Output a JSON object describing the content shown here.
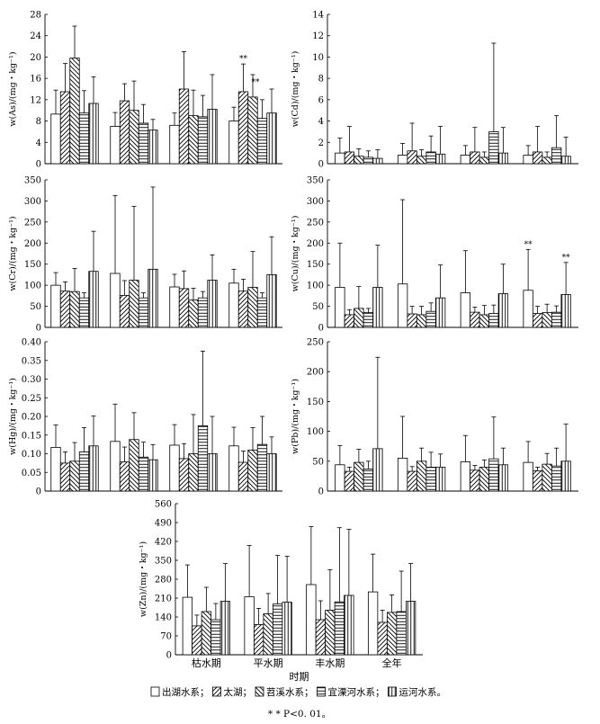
{
  "periods": [
    "枯水期",
    "平水期",
    "丰水期",
    "全年"
  ],
  "xlabel": "时期",
  "legend": {
    "items": [
      "出湖水系；",
      "太湖；",
      "苕溪水系；",
      "宜溧河水系；",
      "运河水系。"
    ]
  },
  "footnote": "* * P<0. 01。",
  "colors": {
    "bar_fill": "#ffffff",
    "stroke": "#000000"
  },
  "series_patterns": [
    "blank",
    "diagonal-right",
    "diagonal-left",
    "horizontal",
    "vertical"
  ],
  "chart_data": [
    {
      "type": "bar",
      "panel": "As",
      "ylabel": "w(As)/(mg・kg⁻¹)",
      "ylim": [
        0,
        28
      ],
      "yticks": [
        "0",
        "4",
        "8",
        "12",
        "16",
        "20",
        "24",
        "28"
      ],
      "categories": [
        "枯水期",
        "平水期",
        "丰水期",
        "全年"
      ],
      "series": [
        {
          "name": "出湖水系",
          "values": [
            9.3,
            7.0,
            7.2,
            8.0
          ],
          "error": [
            4.5,
            2.6,
            2.3,
            2.6
          ]
        },
        {
          "name": "太湖",
          "values": [
            13.5,
            11.8,
            14.0,
            13.5
          ],
          "error": [
            5.3,
            3.2,
            7.0,
            5.2
          ]
        },
        {
          "name": "苕溪水系",
          "values": [
            19.8,
            10.0,
            9.0,
            12.5
          ],
          "error": [
            6.0,
            5.5,
            4.8,
            4.2
          ]
        },
        {
          "name": "宜溧河水系",
          "values": [
            9.5,
            7.6,
            8.8,
            8.5
          ],
          "error": [
            4.2,
            3.5,
            4.0,
            3.5
          ]
        },
        {
          "name": "运河水系",
          "values": [
            11.3,
            6.3,
            10.2,
            9.5
          ],
          "error": [
            5.0,
            2.0,
            6.5,
            4.5
          ]
        }
      ],
      "annotations": [
        {
          "category": "全年",
          "series": "太湖",
          "text": "**"
        },
        {
          "category": "全年",
          "series": "苕溪水系",
          "text": "**"
        }
      ]
    },
    {
      "type": "bar",
      "panel": "Cd",
      "ylabel": "w(Cd)/(mg・kg⁻¹)",
      "ylim": [
        0,
        14
      ],
      "yticks": [
        "0",
        "2",
        "4",
        "6",
        "8",
        "10",
        "12",
        "14"
      ],
      "categories": [
        "枯水期",
        "平水期",
        "丰水期",
        "全年"
      ],
      "series": [
        {
          "name": "出湖水系",
          "values": [
            1.0,
            0.8,
            0.8,
            0.8
          ],
          "error": [
            1.4,
            1.1,
            0.9,
            0.9
          ]
        },
        {
          "name": "太湖",
          "values": [
            1.1,
            1.2,
            1.1,
            1.1
          ],
          "error": [
            2.4,
            2.6,
            2.3,
            2.4
          ]
        },
        {
          "name": "苕溪水系",
          "values": [
            0.7,
            0.7,
            0.6,
            0.6
          ],
          "error": [
            0.7,
            0.6,
            0.5,
            0.5
          ]
        },
        {
          "name": "宜溧河水系",
          "values": [
            0.6,
            1.1,
            3.0,
            1.5
          ],
          "error": [
            0.6,
            1.5,
            8.3,
            3.0
          ]
        },
        {
          "name": "运河水系",
          "values": [
            0.5,
            0.9,
            1.0,
            0.7
          ],
          "error": [
            0.8,
            2.6,
            2.4,
            1.8
          ]
        }
      ]
    },
    {
      "type": "bar",
      "panel": "Cr",
      "ylabel": "w(Cr)/(mg・kg⁻¹)",
      "ylim": [
        0,
        350
      ],
      "yticks": [
        "0",
        "50",
        "100",
        "150",
        "200",
        "250",
        "300",
        "350"
      ],
      "categories": [
        "枯水期",
        "平水期",
        "丰水期",
        "全年"
      ],
      "series": [
        {
          "name": "出湖水系",
          "values": [
            100,
            128,
            96,
            105
          ],
          "error": [
            30,
            185,
            30,
            33
          ]
        },
        {
          "name": "太湖",
          "values": [
            86,
            76,
            92,
            86
          ],
          "error": [
            22,
            35,
            42,
            28
          ]
        },
        {
          "name": "苕溪水系",
          "values": [
            85,
            112,
            65,
            95
          ],
          "error": [
            55,
            175,
            28,
            85
          ]
        },
        {
          "name": "宜溧河水系",
          "values": [
            70,
            70,
            70,
            70
          ],
          "error": [
            12,
            12,
            15,
            12
          ]
        },
        {
          "name": "运河水系",
          "values": [
            133,
            138,
            112,
            125
          ],
          "error": [
            95,
            195,
            60,
            90
          ]
        }
      ]
    },
    {
      "type": "bar",
      "panel": "Cu",
      "ylabel": "w(Cu)/(mg・kg⁻¹)",
      "ylim": [
        0,
        350
      ],
      "yticks": [
        "0",
        "50",
        "100",
        "150",
        "200",
        "250",
        "300",
        "350"
      ],
      "categories": [
        "枯水期",
        "平水期",
        "丰水期",
        "全年"
      ],
      "series": [
        {
          "name": "出湖水系",
          "values": [
            95,
            103,
            82,
            88
          ],
          "error": [
            105,
            200,
            100,
            97
          ]
        },
        {
          "name": "太湖",
          "values": [
            30,
            32,
            36,
            33
          ],
          "error": [
            12,
            18,
            12,
            17
          ]
        },
        {
          "name": "苕溪水系",
          "values": [
            45,
            30,
            30,
            35
          ],
          "error": [
            52,
            20,
            22,
            20
          ]
        },
        {
          "name": "宜溧河水系",
          "values": [
            35,
            38,
            33,
            36
          ],
          "error": [
            10,
            20,
            20,
            15
          ]
        },
        {
          "name": "运河水系",
          "values": [
            95,
            70,
            80,
            78
          ],
          "error": [
            100,
            78,
            70,
            76
          ]
        }
      ],
      "annotations": [
        {
          "category": "全年",
          "series": "出湖水系",
          "text": "**"
        },
        {
          "category": "全年",
          "series": "运河水系",
          "text": "**"
        }
      ]
    },
    {
      "type": "bar",
      "panel": "Hg",
      "ylabel": "w(Hg)/(mg・kg⁻¹)",
      "ylim": [
        0,
        0.4
      ],
      "yticks": [
        "0",
        "0.05",
        "0.10",
        "0.15",
        "0.20",
        "0.25",
        "0.30",
        "0.35",
        "0.40"
      ],
      "categories": [
        "枯水期",
        "平水期",
        "丰水期",
        "全年"
      ],
      "series": [
        {
          "name": "出湖水系",
          "values": [
            0.117,
            0.133,
            0.123,
            0.121
          ],
          "error": [
            0.06,
            0.1,
            0.055,
            0.05
          ]
        },
        {
          "name": "太湖",
          "values": [
            0.075,
            0.078,
            0.087,
            0.077
          ],
          "error": [
            0.03,
            0.04,
            0.04,
            0.03
          ]
        },
        {
          "name": "苕溪水系",
          "values": [
            0.08,
            0.138,
            0.1,
            0.11
          ],
          "error": [
            0.05,
            0.072,
            0.105,
            0.06
          ]
        },
        {
          "name": "宜溧河水系",
          "values": [
            0.105,
            0.091,
            0.175,
            0.125
          ],
          "error": [
            0.065,
            0.04,
            0.2,
            0.075
          ]
        },
        {
          "name": "运河水系",
          "values": [
            0.121,
            0.084,
            0.1,
            0.1
          ],
          "error": [
            0.08,
            0.04,
            0.1,
            0.045
          ]
        }
      ]
    },
    {
      "type": "bar",
      "panel": "Pb",
      "ylabel": "w(Pb)/(mg・kg⁻¹)",
      "ylim": [
        0,
        250
      ],
      "yticks": [
        "0",
        "50",
        "100",
        "150",
        "200",
        "250"
      ],
      "categories": [
        "枯水期",
        "平水期",
        "丰水期",
        "全年"
      ],
      "series": [
        {
          "name": "出湖水系",
          "values": [
            44,
            55,
            49,
            48
          ],
          "error": [
            32,
            70,
            44,
            35
          ]
        },
        {
          "name": "太湖",
          "values": [
            33,
            33,
            35,
            34
          ],
          "error": [
            7,
            8,
            8,
            6
          ]
        },
        {
          "name": "苕溪水系",
          "values": [
            48,
            50,
            40,
            45
          ],
          "error": [
            22,
            22,
            12,
            18
          ]
        },
        {
          "name": "宜溧河水系",
          "values": [
            37,
            40,
            54,
            42
          ],
          "error": [
            13,
            25,
            70,
            30
          ]
        },
        {
          "name": "运河水系",
          "values": [
            71,
            40,
            44,
            50
          ],
          "error": [
            153,
            22,
            28,
            62
          ]
        }
      ]
    },
    {
      "type": "bar",
      "panel": "Zn",
      "ylabel": "w(Zn)/(mg・kg⁻¹)",
      "ylim": [
        0,
        560
      ],
      "yticks": [
        "0",
        "70",
        "140",
        "210",
        "280",
        "350",
        "420",
        "490",
        "560"
      ],
      "categories": [
        "枯水期",
        "平水期",
        "丰水期",
        "全年"
      ],
      "series": [
        {
          "name": "出湖水系",
          "values": [
            213,
            215,
            260,
            233
          ],
          "error": [
            120,
            190,
            215,
            140
          ]
        },
        {
          "name": "太湖",
          "values": [
            107,
            112,
            130,
            120
          ],
          "error": [
            40,
            60,
            70,
            45
          ]
        },
        {
          "name": "苕溪水系",
          "values": [
            160,
            152,
            165,
            157
          ],
          "error": [
            90,
            75,
            150,
            65
          ]
        },
        {
          "name": "宜溧河水系",
          "values": [
            130,
            188,
            196,
            160
          ],
          "error": [
            60,
            180,
            275,
            150
          ]
        },
        {
          "name": "运河水系",
          "values": [
            198,
            195,
            220,
            198
          ],
          "error": [
            140,
            170,
            245,
            140
          ]
        }
      ]
    }
  ]
}
